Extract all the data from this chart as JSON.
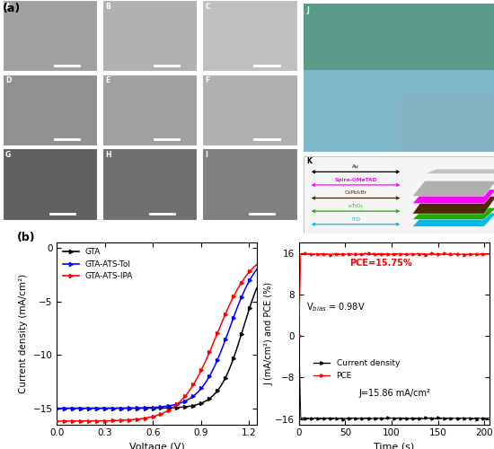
{
  "panel_label_a": "(a)",
  "panel_label_b": "(b)",
  "jv_xlabel": "Voltage (V)",
  "jv_ylabel": "Current density (mA/cm²)",
  "jv_xlim": [
    0.0,
    1.25
  ],
  "jv_ylim": [
    -16.5,
    0.5
  ],
  "jv_xticks": [
    0.0,
    0.3,
    0.6,
    0.9,
    1.2
  ],
  "jv_yticks": [
    0,
    -5,
    -10,
    -15
  ],
  "jv_legend": [
    "GTA",
    "GTA-ATS-Tol",
    "GTA-ATS-IPA"
  ],
  "jv_colors": [
    "#000000",
    "#0000ff",
    "#ff0000"
  ],
  "stab_xlabel": "Time (s)",
  "stab_ylabel": "J (mA/cm²) and PCE (%)",
  "stab_xlim": [
    0,
    205
  ],
  "stab_ylim": [
    -17,
    18
  ],
  "stab_xticks": [
    0,
    50,
    100,
    150,
    200
  ],
  "stab_yticks": [
    -16,
    -8,
    0,
    8,
    16
  ],
  "stab_pce_value": 15.75,
  "stab_j_value": -15.86,
  "stab_vbias": "V$_{bias}$ = 0.98V",
  "stab_pce_label": "PCE=15.75%",
  "stab_j_label": "J=15.86 mA/cm²",
  "stab_legend": [
    "Current density",
    "PCE"
  ],
  "stab_colors": [
    "#000000",
    "#ff0000"
  ],
  "bg_color": "#ffffff",
  "sem_colors": [
    "#a0a0a0",
    "#b0b0b0",
    "#c0c0c0",
    "#909090",
    "#a0a0a0",
    "#b0b0b0",
    "#606060",
    "#707070",
    "#808080"
  ],
  "layer_colors": [
    "#b0b0b0",
    "#ff00ff",
    "#4a2800",
    "#22aa00",
    "#00bbee"
  ],
  "layer_labels": [
    "Au",
    "Spiro-OMeTAD",
    "CsPbI₂Br",
    "c-TiO₂",
    "ITO"
  ],
  "layer_arrow_colors": [
    "#000000",
    "#ff00ff",
    "#4a2800",
    "#22aa00",
    "#00bbee"
  ],
  "photo_color": "#7a9db0"
}
